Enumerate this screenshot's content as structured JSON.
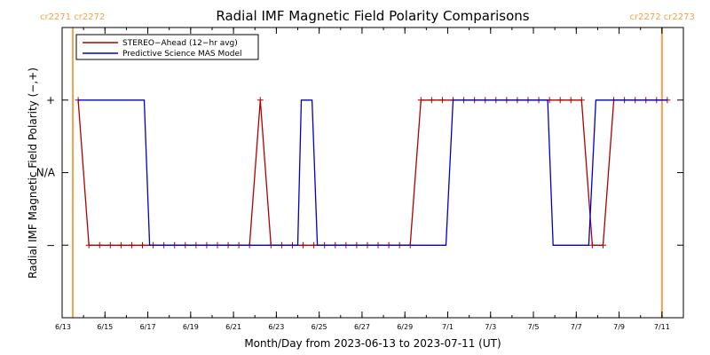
{
  "chart_data": {
    "type": "line",
    "title": "Radial IMF Magnetic Field Polarity Comparisons",
    "xlabel": "Month/Day from 2023-06-13 to 2023-07-11 (UT)",
    "ylabel": "Radial IMF Magnetic Field Polarity (−,+)",
    "xlim": [
      "2023-06-13",
      "2023-07-12"
    ],
    "y_levels": [
      {
        "label": "+",
        "value": 1
      },
      {
        "label": "N/A",
        "value": 0
      },
      {
        "label": "−",
        "value": -1
      }
    ],
    "ylim": [
      -2,
      2
    ],
    "x_tick_labels": [
      "6/13",
      "6/15",
      "6/17",
      "6/19",
      "6/21",
      "6/23",
      "6/25",
      "6/27",
      "6/29",
      "7/1",
      "7/3",
      "7/5",
      "7/7",
      "7/9",
      "7/11"
    ],
    "x_tick_dates": [
      "2023-06-13",
      "2023-06-15",
      "2023-06-17",
      "2023-06-19",
      "2023-06-21",
      "2023-06-23",
      "2023-06-25",
      "2023-06-27",
      "2023-06-29",
      "2023-07-01",
      "2023-07-03",
      "2023-07-05",
      "2023-07-07",
      "2023-07-09",
      "2023-07-11"
    ],
    "legend": {
      "placement": "top-left"
    },
    "carrington_markers": [
      {
        "date": "2023-06-13 12:00",
        "labels": [
          "cr2271",
          "cr2272"
        ],
        "align": "start"
      },
      {
        "date": "2023-07-11 00:00",
        "labels": [
          "cr2272",
          "cr2273"
        ],
        "align": "end"
      }
    ],
    "series": [
      {
        "name": "STEREO−Ahead (12−hr avg)",
        "color": "#b00000",
        "marker": "+",
        "points": [
          [
            "2023-06-13 18:00",
            1
          ],
          [
            "2023-06-14 06:00",
            -1
          ],
          [
            "2023-06-14 18:00",
            -1
          ],
          [
            "2023-06-15 06:00",
            -1
          ],
          [
            "2023-06-15 18:00",
            -1
          ],
          [
            "2023-06-16 06:00",
            -1
          ],
          [
            "2023-06-16 18:00",
            -1
          ],
          [
            "2023-06-17 06:00",
            -1
          ],
          [
            "2023-06-17 18:00",
            -1
          ],
          [
            "2023-06-18 06:00",
            -1
          ],
          [
            "2023-06-18 18:00",
            -1
          ],
          [
            "2023-06-19 06:00",
            -1
          ],
          [
            "2023-06-19 18:00",
            -1
          ],
          [
            "2023-06-20 06:00",
            -1
          ],
          [
            "2023-06-20 18:00",
            -1
          ],
          [
            "2023-06-21 06:00",
            -1
          ],
          [
            "2023-06-21 18:00",
            -1
          ],
          [
            "2023-06-22 06:00",
            1
          ],
          [
            "2023-06-22 18:00",
            -1
          ],
          [
            "2023-06-23 06:00",
            -1
          ],
          [
            "2023-06-23 18:00",
            -1
          ],
          [
            "2023-06-24 06:00",
            -1
          ],
          [
            "2023-06-24 18:00",
            -1
          ],
          [
            "2023-06-25 06:00",
            -1
          ],
          [
            "2023-06-25 18:00",
            -1
          ],
          [
            "2023-06-26 06:00",
            -1
          ],
          [
            "2023-06-26 18:00",
            -1
          ],
          [
            "2023-06-27 06:00",
            -1
          ],
          [
            "2023-06-27 18:00",
            -1
          ],
          [
            "2023-06-28 06:00",
            -1
          ],
          [
            "2023-06-28 18:00",
            -1
          ],
          [
            "2023-06-29 06:00",
            -1
          ],
          [
            "2023-06-29 18:00",
            1
          ],
          [
            "2023-06-30 06:00",
            1
          ],
          [
            "2023-06-30 18:00",
            1
          ],
          [
            "2023-07-01 06:00",
            1
          ],
          [
            "2023-07-01 18:00",
            1
          ],
          [
            "2023-07-02 06:00",
            1
          ],
          [
            "2023-07-02 18:00",
            1
          ],
          [
            "2023-07-03 06:00",
            1
          ],
          [
            "2023-07-03 18:00",
            1
          ],
          [
            "2023-07-04 06:00",
            1
          ],
          [
            "2023-07-04 18:00",
            1
          ],
          [
            "2023-07-05 06:00",
            1
          ],
          [
            "2023-07-05 18:00",
            1
          ],
          [
            "2023-07-06 06:00",
            1
          ],
          [
            "2023-07-06 18:00",
            1
          ],
          [
            "2023-07-07 06:00",
            1
          ],
          [
            "2023-07-07 18:00",
            -1
          ],
          [
            "2023-07-08 06:00",
            -1
          ],
          [
            "2023-07-08 18:00",
            1
          ],
          [
            "2023-07-09 06:00",
            1
          ],
          [
            "2023-07-09 18:00",
            1
          ],
          [
            "2023-07-10 06:00",
            1
          ],
          [
            "2023-07-10 18:00",
            1
          ],
          [
            "2023-07-11 06:00",
            1
          ]
        ]
      },
      {
        "name": "Predictive Science MAS Model",
        "color": "#0000c8",
        "marker": "none",
        "points": [
          [
            "2023-06-13 18:00",
            1
          ],
          [
            "2023-06-16 20:00",
            1
          ],
          [
            "2023-06-17 02:00",
            -1
          ],
          [
            "2023-06-24 00:00",
            -1
          ],
          [
            "2023-06-24 04:00",
            1
          ],
          [
            "2023-06-24 16:00",
            1
          ],
          [
            "2023-06-24 22:00",
            -1
          ],
          [
            "2023-06-30 22:00",
            -1
          ],
          [
            "2023-07-01 06:00",
            1
          ],
          [
            "2023-07-05 16:00",
            1
          ],
          [
            "2023-07-05 22:00",
            -1
          ],
          [
            "2023-07-07 14:00",
            -1
          ],
          [
            "2023-07-07 22:00",
            1
          ],
          [
            "2023-07-11 06:00",
            1
          ]
        ]
      }
    ]
  }
}
